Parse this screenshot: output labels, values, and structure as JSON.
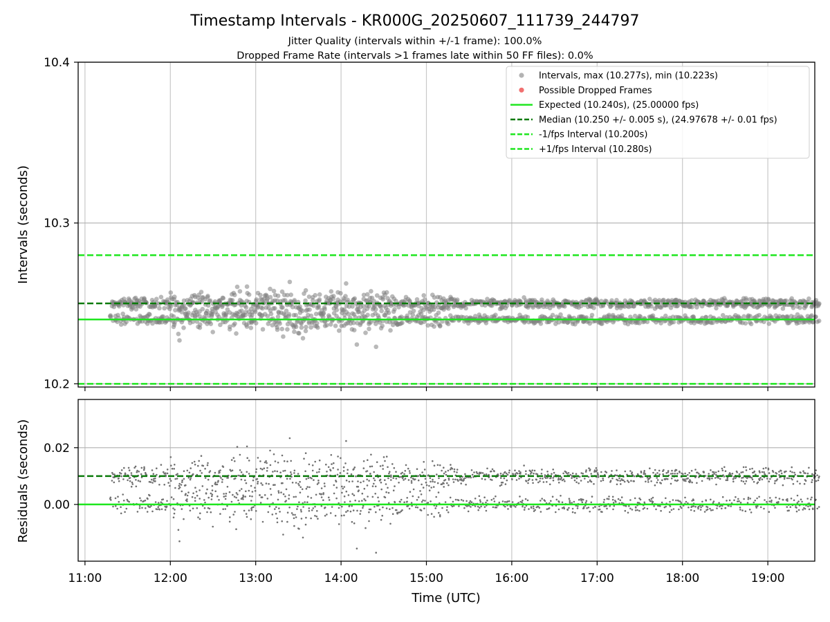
{
  "chart_data": {
    "type": "scatter",
    "title": "Timestamp Intervals - KR000G_20250607_111739_244797",
    "subtitle_lines": [
      "Jitter Quality (intervals within +/-1 frame): 100.0%",
      "Dropped Frame Rate (intervals >1 frames late within 50 FF files): 0.0%"
    ],
    "xlabel": "Time (UTC)",
    "x_tick_labels": [
      "11:00",
      "12:00",
      "13:00",
      "14:00",
      "15:00",
      "16:00",
      "17:00",
      "18:00",
      "19:00"
    ],
    "x_tick_hours": [
      11,
      12,
      13,
      14,
      15,
      16,
      17,
      18,
      19
    ],
    "xlim_hours": [
      10.92,
      19.55
    ],
    "data_start_hour": 11.3,
    "data_end_hour": 19.6,
    "grid": true,
    "legend_position": "top-right",
    "colors": {
      "points": "#808080",
      "dropped": "#f06060",
      "expected": "#1ee61e",
      "median": "#0a7a0a",
      "fps_interval": "#1ee61e",
      "grid": "#c8c8c8"
    },
    "top_panel": {
      "ylabel": "Intervals (seconds)",
      "ylim": [
        10.198,
        10.4
      ],
      "y_ticks": [
        10.2,
        10.3,
        10.4
      ],
      "y_tick_labels": [
        "10.2",
        "10.3",
        "10.4"
      ],
      "max_interval": 10.277,
      "min_interval": 10.223,
      "expected": 10.24,
      "median": 10.25,
      "minus_fps": 10.2,
      "plus_fps": 10.28,
      "dropped_frames": []
    },
    "bottom_panel": {
      "ylabel": "Residuals (seconds)",
      "ylim": [
        -0.02,
        0.037
      ],
      "y_ticks": [
        0.0,
        0.02
      ],
      "y_tick_labels": [
        "0.00",
        "0.02"
      ],
      "zero_line": 0.0,
      "median_residual": 0.01
    },
    "legend": [
      {
        "label": "Intervals, max (10.277s), min (10.223s)",
        "kind": "dot",
        "color": "#a0a0a0"
      },
      {
        "label": "Possible Dropped Frames",
        "kind": "dot",
        "color": "#f06060"
      },
      {
        "label": "Expected (10.240s), (25.00000 fps)",
        "kind": "line",
        "color": "#1ee61e"
      },
      {
        "label": "Median (10.250 +/- 0.005 s), (24.97678 +/- 0.01 fps)",
        "kind": "dashed",
        "color": "#0a7a0a"
      },
      {
        "label": "-1/fps Interval (10.200s)",
        "kind": "dashed",
        "color": "#1ee61e"
      },
      {
        "label": "+1/fps Interval (10.280s)",
        "kind": "dashed",
        "color": "#1ee61e"
      }
    ]
  }
}
